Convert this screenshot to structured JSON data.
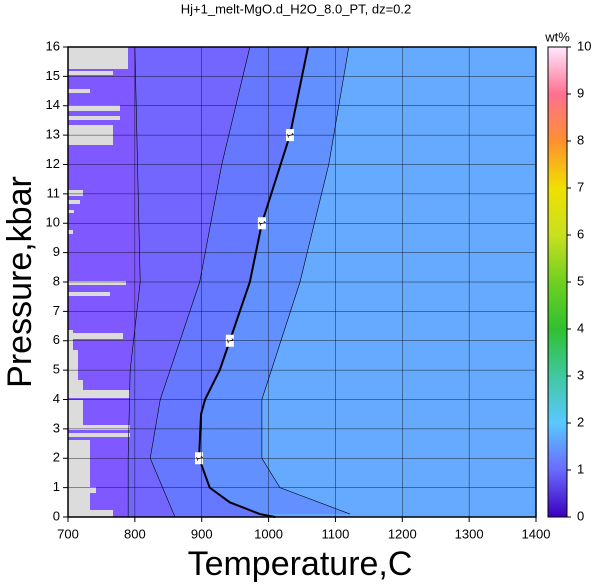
{
  "chart_data": {
    "type": "contour",
    "title": "Hj+1_melt-MgO.d_H2O_8.0_PT, dz=0.2",
    "xlabel": "Temperature,C",
    "ylabel": "Pressure,kbar",
    "xlim": [
      700,
      1400
    ],
    "ylim": [
      0,
      16
    ],
    "xticks": [
      700,
      800,
      900,
      1000,
      1100,
      1200,
      1300,
      1400
    ],
    "yticks": [
      0,
      1,
      2,
      3,
      4,
      5,
      6,
      7,
      8,
      9,
      10,
      11,
      12,
      13,
      14,
      15,
      16
    ],
    "grid": true,
    "background_color": "#66aaff",
    "contours": [
      {
        "level": 1.5,
        "color": "#6290ff",
        "x": [
          1120,
          1090,
          1047,
          990,
          990,
          1017,
          1122
        ],
        "y": [
          16,
          12,
          8,
          4,
          2,
          1,
          0.1
        ]
      },
      {
        "level": 1,
        "color": "#6678ff",
        "x": [
          1059,
          1050,
          1032,
          990,
          972,
          942,
          927,
          905,
          899,
          896,
          912,
          942,
          987,
          1010
        ],
        "y": [
          16,
          15,
          13,
          10,
          8,
          6,
          5,
          4,
          3.5,
          2,
          1,
          0.5,
          0.1,
          0
        ]
      },
      {
        "level": 0.5,
        "color": "#7266ff",
        "x": [
          972,
          930,
          897,
          838,
          823,
          860
        ],
        "y": [
          16,
          12,
          8,
          4,
          2,
          0
        ]
      },
      {
        "level": 0.2,
        "color": "#8058ff",
        "x": [
          800,
          808,
          793,
          790,
          790
        ],
        "y": [
          16,
          8,
          5,
          2,
          0
        ]
      }
    ],
    "colorbar": {
      "label": "wt%",
      "lim": [
        0,
        10
      ],
      "ticks": [
        0,
        1,
        2,
        3,
        4,
        5,
        6,
        7,
        8,
        9,
        10
      ],
      "colors": [
        "#3a00c0",
        "#6a6aff",
        "#5ac8ff",
        "#40c8a0",
        "#30c030",
        "#70d020",
        "#c8e020",
        "#f0e000",
        "#ff9030",
        "#ff7090",
        "#ffe8ff"
      ]
    }
  }
}
